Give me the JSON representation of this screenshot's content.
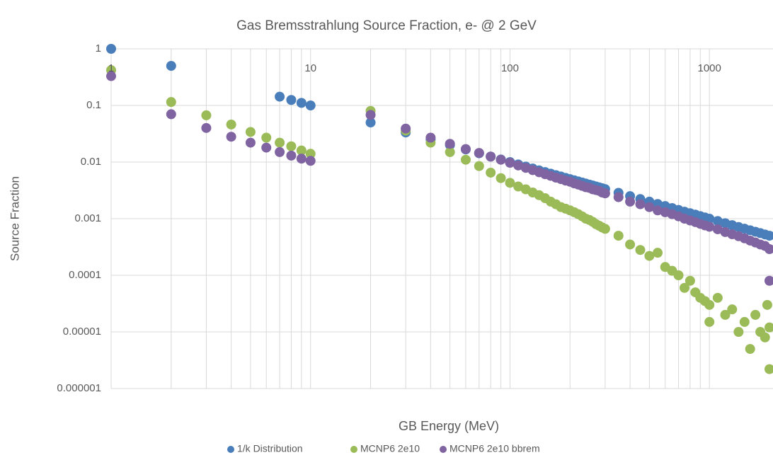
{
  "chart_data": {
    "type": "scatter",
    "title": "Gas Bremsstrahlung Source Fraction, e- @ 2 GeV",
    "x_label": "GB Energy (MeV)",
    "y_label": "Source Fraction",
    "x_log": true,
    "y_log": true,
    "grid": true,
    "minor_x_grid": true,
    "legend": "bottom",
    "xlim": [
      1,
      2000
    ],
    "ylim": [
      1e-06,
      1
    ],
    "xticks": [
      1,
      10,
      100,
      1000
    ],
    "yticks": [
      1e-06,
      1e-05,
      0.0001,
      0.001,
      0.01,
      0.1,
      1
    ],
    "series": [
      {
        "name": "1/k Distribution",
        "color": "#4a7ebb",
        "x": [
          1,
          2,
          7,
          8,
          9,
          10,
          20,
          30,
          40,
          50,
          60,
          70,
          80,
          90,
          100,
          110,
          120,
          130,
          140,
          150,
          160,
          170,
          180,
          190,
          200,
          210,
          220,
          230,
          240,
          250,
          260,
          270,
          280,
          290,
          300,
          350,
          400,
          450,
          500,
          550,
          600,
          650,
          700,
          750,
          800,
          850,
          900,
          950,
          1000,
          1100,
          1200,
          1300,
          1400,
          1500,
          1600,
          1700,
          1800,
          1900,
          2000
        ],
        "values": [
          1,
          0.5,
          0.143,
          0.125,
          0.111,
          0.1,
          0.05,
          0.0333,
          0.025,
          0.02,
          0.0167,
          0.0143,
          0.0125,
          0.0111,
          0.01,
          0.00909,
          0.00833,
          0.00769,
          0.00714,
          0.00667,
          0.00625,
          0.00588,
          0.00556,
          0.00526,
          0.005,
          0.00476,
          0.00455,
          0.00435,
          0.00417,
          0.004,
          0.00385,
          0.0037,
          0.00357,
          0.00345,
          0.00333,
          0.00286,
          0.0025,
          0.00222,
          0.002,
          0.00182,
          0.00167,
          0.00154,
          0.00143,
          0.00133,
          0.00125,
          0.00118,
          0.00111,
          0.00105,
          0.001,
          0.000909,
          0.000833,
          0.000769,
          0.000714,
          0.000667,
          0.000625,
          0.000588,
          0.000556,
          0.000526,
          0.0005
        ]
      },
      {
        "name": "MCNP6 2e10",
        "color": "#9bbb59",
        "x": [
          1,
          2,
          3,
          4,
          5,
          6,
          7,
          8,
          9,
          10,
          20,
          30,
          40,
          50,
          60,
          70,
          80,
          90,
          100,
          110,
          120,
          130,
          140,
          150,
          160,
          170,
          180,
          190,
          200,
          210,
          220,
          230,
          240,
          250,
          260,
          270,
          280,
          290,
          300,
          350,
          400,
          450,
          500,
          550,
          600,
          650,
          700,
          750,
          800,
          850,
          900,
          950,
          1000,
          1000,
          1100,
          1200,
          1300,
          1400,
          1500,
          1600,
          1700,
          1800,
          1900,
          1950,
          2000,
          2000
        ],
        "values": [
          0.42,
          0.115,
          0.067,
          0.046,
          0.034,
          0.027,
          0.022,
          0.019,
          0.016,
          0.014,
          0.08,
          0.036,
          0.022,
          0.015,
          0.011,
          0.0085,
          0.0065,
          0.0052,
          0.0043,
          0.0037,
          0.0033,
          0.0029,
          0.0026,
          0.0023,
          0.002,
          0.0018,
          0.0016,
          0.0015,
          0.0014,
          0.0013,
          0.0012,
          0.0011,
          0.001,
          0.00095,
          0.00088,
          0.0008,
          0.00075,
          0.0007,
          0.00066,
          0.0005,
          0.00035,
          0.00028,
          0.00022,
          0.00025,
          0.00014,
          0.00012,
          0.0001,
          6e-05,
          8e-05,
          5e-05,
          4e-05,
          3.5e-05,
          3e-05,
          1.5e-05,
          4e-05,
          2e-05,
          2.5e-05,
          1e-05,
          1.5e-05,
          5e-06,
          2e-05,
          1e-05,
          8e-06,
          3e-05,
          1.2e-05,
          2.2e-06
        ]
      },
      {
        "name": "MCNP6 2e10 bbrem",
        "color": "#8064a2",
        "x": [
          1,
          2,
          3,
          4,
          5,
          6,
          7,
          8,
          9,
          10,
          20,
          30,
          40,
          50,
          60,
          70,
          80,
          90,
          100,
          110,
          120,
          130,
          140,
          150,
          160,
          170,
          180,
          190,
          200,
          210,
          220,
          230,
          240,
          250,
          260,
          270,
          280,
          290,
          300,
          350,
          400,
          450,
          500,
          550,
          600,
          650,
          700,
          750,
          800,
          850,
          900,
          950,
          1000,
          1100,
          1200,
          1300,
          1400,
          1500,
          1600,
          1700,
          1800,
          1900,
          2000,
          2000
        ],
        "values": [
          0.33,
          0.07,
          0.04,
          0.028,
          0.022,
          0.018,
          0.015,
          0.013,
          0.0115,
          0.0105,
          0.068,
          0.039,
          0.027,
          0.021,
          0.017,
          0.0145,
          0.0125,
          0.011,
          0.0097,
          0.0087,
          0.0079,
          0.0072,
          0.0066,
          0.0061,
          0.0057,
          0.0053,
          0.005,
          0.0047,
          0.0045,
          0.0042,
          0.004,
          0.0038,
          0.0036,
          0.0035,
          0.0033,
          0.0032,
          0.0031,
          0.0029,
          0.0028,
          0.0024,
          0.002,
          0.0018,
          0.0016,
          0.0014,
          0.0013,
          0.0012,
          0.0011,
          0.001,
          0.00093,
          0.00087,
          0.00081,
          0.00076,
          0.00072,
          0.00065,
          0.00058,
          0.00053,
          0.00049,
          0.00045,
          0.00041,
          0.00038,
          0.00035,
          0.00033,
          0.00029,
          8e-05
        ]
      }
    ]
  }
}
